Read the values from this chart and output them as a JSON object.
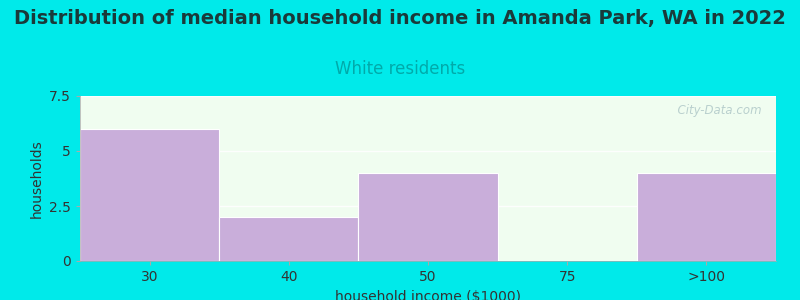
{
  "title": "Distribution of median household income in Amanda Park, WA in 2022",
  "subtitle": "White residents",
  "xlabel": "household income ($1000)",
  "ylabel": "households",
  "categories": [
    "30",
    "40",
    "50",
    "75",
    ">100"
  ],
  "bar_lefts": [
    0,
    1,
    2,
    3,
    4
  ],
  "bar_widths": [
    1,
    1,
    1,
    1,
    1
  ],
  "values": [
    6,
    2,
    4,
    0,
    4
  ],
  "bar_color": "#c9aeda",
  "bar_edgecolor": "#ffffff",
  "ylim": [
    0,
    7.5
  ],
  "yticks": [
    0,
    2.5,
    5,
    7.5
  ],
  "background_color": "#00eaea",
  "plot_bg_color": "#f0fdf0",
  "title_fontsize": 14,
  "subtitle_fontsize": 12,
  "subtitle_color": "#00aaaa",
  "axis_label_fontsize": 10,
  "tick_fontsize": 10,
  "watermark": "  City-Data.com"
}
